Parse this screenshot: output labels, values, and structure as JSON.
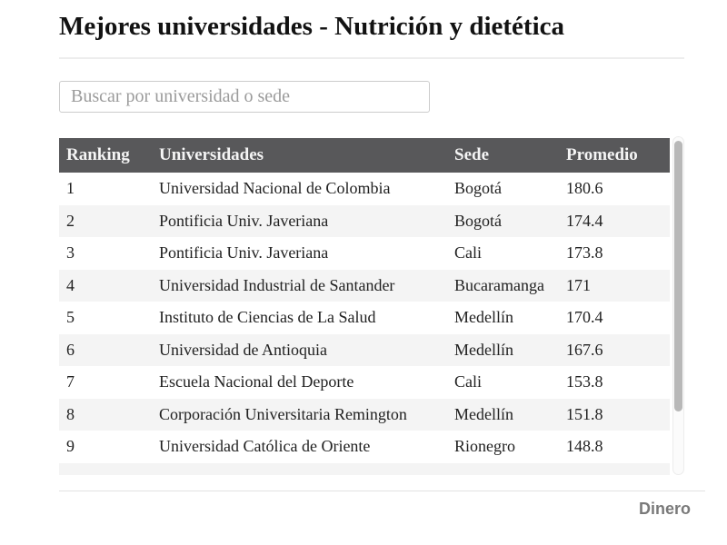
{
  "header": {
    "title": "Mejores universidades - Nutrición y dietética"
  },
  "search": {
    "placeholder": "Buscar por universidad o sede",
    "value": ""
  },
  "table": {
    "columns": [
      "Ranking",
      "Universidades",
      "Sede",
      "Promedio"
    ],
    "rows": [
      {
        "ranking": "1",
        "universidad": "Universidad Nacional de Colombia",
        "sede": "Bogotá",
        "promedio": "180.6"
      },
      {
        "ranking": "2",
        "universidad": "Pontificia Univ. Javeriana",
        "sede": "Bogotá",
        "promedio": "174.4"
      },
      {
        "ranking": "3",
        "universidad": "Pontificia Univ. Javeriana",
        "sede": "Cali",
        "promedio": "173.8"
      },
      {
        "ranking": "4",
        "universidad": "Universidad Industrial de Santander",
        "sede": "Bucaramanga",
        "promedio": "171"
      },
      {
        "ranking": "5",
        "universidad": "Instituto de Ciencias de La Salud",
        "sede": "Medellín",
        "promedio": "170.4"
      },
      {
        "ranking": "6",
        "universidad": "Universidad de Antioquia",
        "sede": "Medellín",
        "promedio": "167.6"
      },
      {
        "ranking": "7",
        "universidad": "Escuela Nacional del Deporte",
        "sede": "Cali",
        "promedio": "153.8"
      },
      {
        "ranking": "8",
        "universidad": "Corporación Universitaria Remington",
        "sede": "Medellín",
        "promedio": "151.8"
      },
      {
        "ranking": "9",
        "universidad": "Universidad Católica de Oriente",
        "sede": "Rionegro",
        "promedio": "148.8"
      }
    ],
    "partial_row_visible": true
  },
  "footer": {
    "brand": "Dinero"
  },
  "colors": {
    "header_bg": "#58585a",
    "header_text": "#f5f5f5",
    "row_alt": "#f4f4f4",
    "text": "#212121",
    "placeholder": "#9b9b9b",
    "brand": "#7a7a7a",
    "scrollbar_thumb": "#b8b8b8"
  }
}
